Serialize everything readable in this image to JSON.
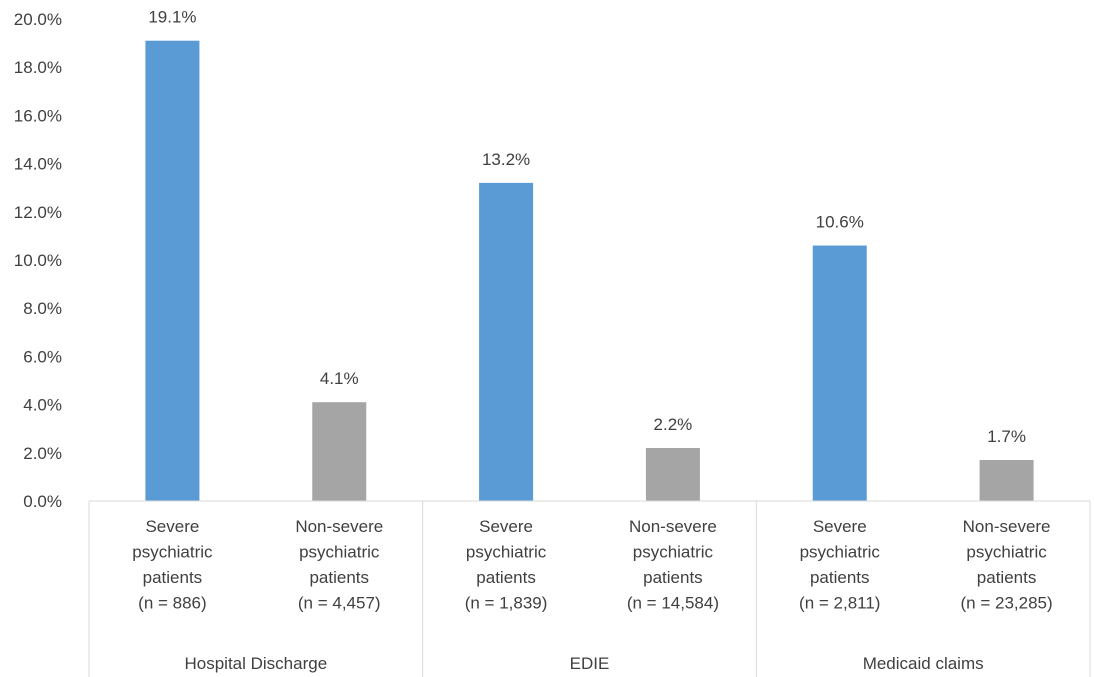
{
  "chart_data": {
    "type": "bar",
    "title": "",
    "xlabel": "",
    "ylabel": "",
    "ylim": [
      0,
      20
    ],
    "y_tick_format": "percent_1dp",
    "y_ticks": [
      "0.0%",
      "2.0%",
      "4.0%",
      "6.0%",
      "8.0%",
      "10.0%",
      "12.0%",
      "14.0%",
      "16.0%",
      "18.0%",
      "20.0%"
    ],
    "grid": false,
    "legend": "none",
    "groups": [
      "Hospital Discharge",
      "EDIE",
      "Medicaid claims"
    ],
    "categories": [
      {
        "group": 0,
        "lines": [
          "Severe",
          "psychiatric",
          "patients",
          "(n = 886)"
        ]
      },
      {
        "group": 0,
        "lines": [
          "Non-severe",
          "psychiatric",
          "patients",
          "(n = 4,457)"
        ]
      },
      {
        "group": 1,
        "lines": [
          "Severe",
          "psychiatric",
          "patients",
          "(n = 1,839)"
        ]
      },
      {
        "group": 1,
        "lines": [
          "Non-severe",
          "psychiatric",
          "patients",
          "(n = 14,584)"
        ]
      },
      {
        "group": 2,
        "lines": [
          "Severe",
          "psychiatric",
          "patients",
          "(n = 2,811)"
        ]
      },
      {
        "group": 2,
        "lines": [
          "Non-severe",
          "psychiatric",
          "patients",
          "(n = 23,285)"
        ]
      }
    ],
    "values": [
      19.1,
      4.1,
      13.2,
      2.2,
      10.6,
      1.7
    ],
    "data_labels": [
      "19.1%",
      "4.1%",
      "13.2%",
      "2.2%",
      "10.6%",
      "1.7%"
    ],
    "bar_colors": [
      "#5b9bd5",
      "#a5a5a5",
      "#5b9bd5",
      "#a5a5a5",
      "#5b9bd5",
      "#a5a5a5"
    ],
    "axis_color": "#d9d9d9"
  }
}
